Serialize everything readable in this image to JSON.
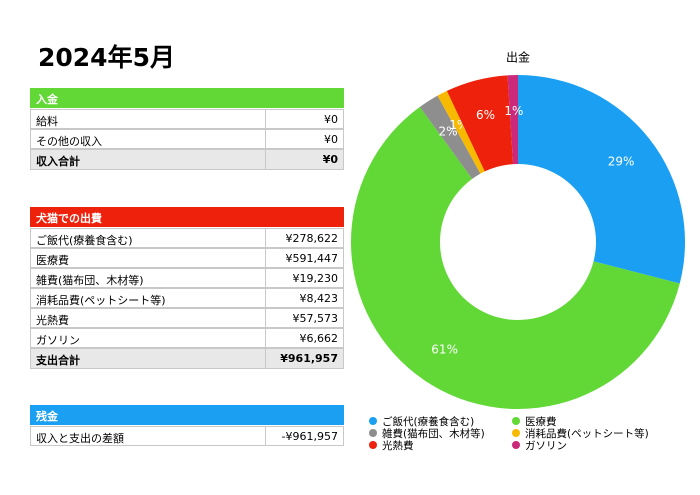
{
  "header": {
    "title": "2024年5月"
  },
  "income": {
    "title": "入金",
    "rows": [
      [
        "給料",
        "¥0"
      ],
      [
        "その他の収入",
        "¥0"
      ]
    ],
    "total": [
      "収入合計",
      "¥0"
    ]
  },
  "expense": {
    "title": "犬猫での出費",
    "rows": [
      [
        "ご飯代(療養食含む)",
        "¥278,622"
      ],
      [
        "医療費",
        "¥591,447"
      ],
      [
        "雑費(猫布団、木材等)",
        "¥19,230"
      ],
      [
        "消耗品費(ペットシート等)",
        "¥8,423"
      ],
      [
        "光熱費",
        "¥57,573"
      ],
      [
        "ガソリン",
        "¥6,662"
      ]
    ],
    "total": [
      "支出合計",
      "¥961,957"
    ]
  },
  "balance": {
    "title": "残金",
    "rows": [
      [
        "収入と支出の差額",
        "-¥961,957"
      ]
    ]
  },
  "chart_data": {
    "type": "donut",
    "title": "出金",
    "categories": [
      "ご飯代(療養食含む)",
      "医療費",
      "雑費(猫布団、木材等)",
      "消耗品費(ペットシート等)",
      "光熱費",
      "ガソリン"
    ],
    "values": [
      29,
      61,
      2,
      1,
      6,
      1
    ],
    "value_labels": [
      "29%",
      "61%",
      "2%",
      "1%",
      "6%",
      "1%"
    ],
    "colors": [
      "#1a9ff2",
      "#61d836",
      "#8e8e8e",
      "#f8ba00",
      "#ee220c",
      "#cb297b"
    ],
    "legend": "bottom"
  }
}
